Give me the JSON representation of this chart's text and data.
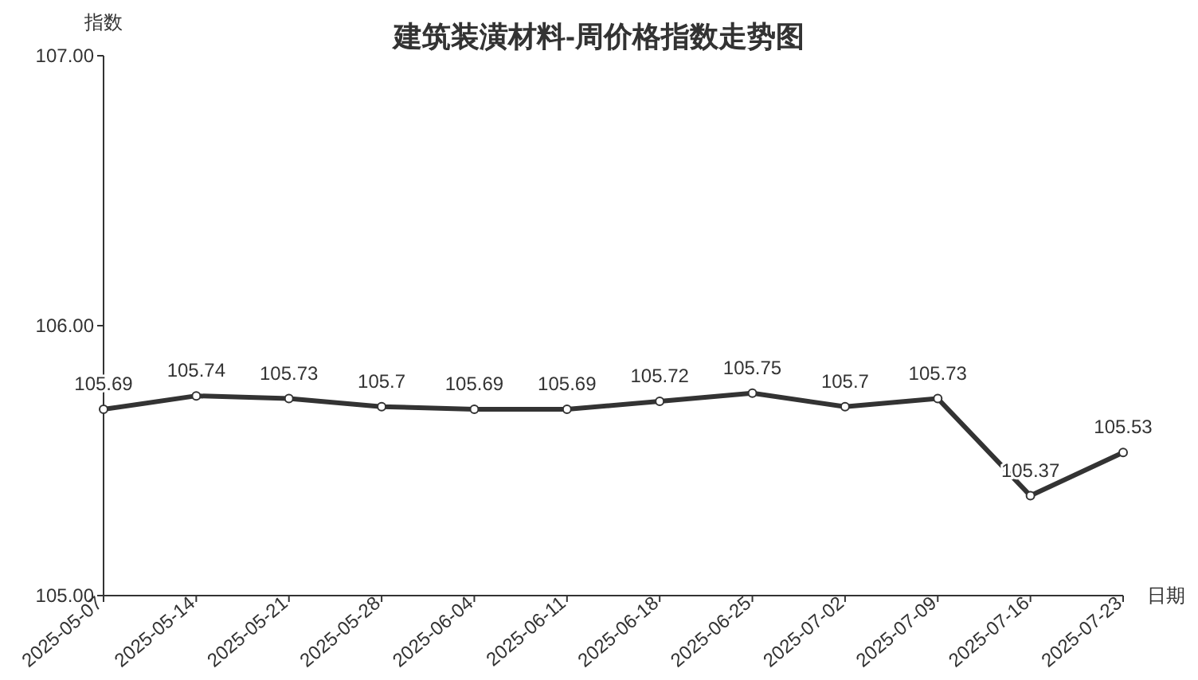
{
  "chart_data": {
    "type": "line",
    "title": "建筑装潢材料-周价格指数走势图",
    "xlabel": "日期",
    "ylabel": "指数",
    "categories": [
      "2025-05-07",
      "2025-05-14",
      "2025-05-21",
      "2025-05-28",
      "2025-06-04",
      "2025-06-11",
      "2025-06-18",
      "2025-06-25",
      "2025-07-02",
      "2025-07-09",
      "2025-07-16",
      "2025-07-23"
    ],
    "series": [
      {
        "color": "#333333",
        "values": [
          105.69,
          105.74,
          105.73,
          105.7,
          105.69,
          105.69,
          105.72,
          105.75,
          105.7,
          105.73,
          105.37,
          105.53
        ]
      }
    ],
    "ylim": [
      105,
      107
    ],
    "yticks": [
      {
        "value": 105,
        "label": "105.00"
      },
      {
        "value": 106,
        "label": "106.00"
      },
      {
        "value": 107,
        "label": "107.00"
      }
    ],
    "data_labels": true,
    "marker": "circle",
    "grid": false
  }
}
